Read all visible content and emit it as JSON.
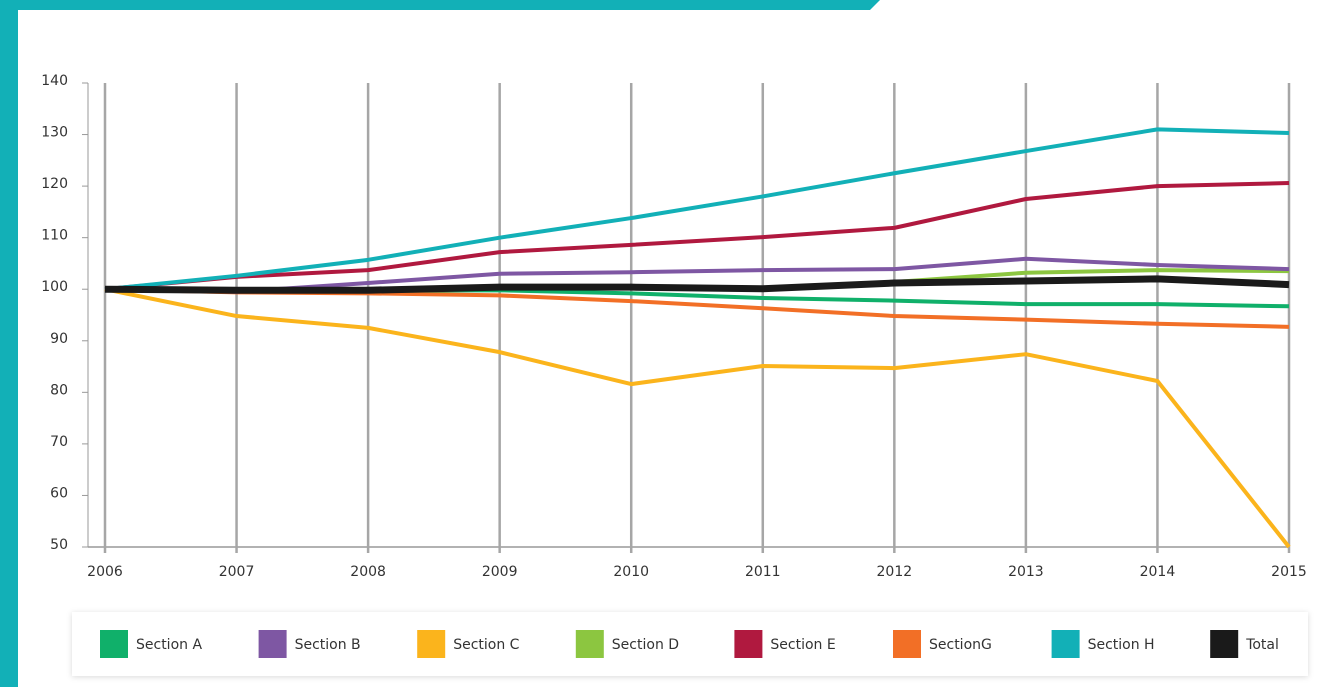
{
  "chart_data": {
    "type": "line",
    "categories": [
      "2006",
      "2007",
      "2008",
      "2009",
      "2010",
      "2011",
      "2012",
      "2013",
      "2014",
      "2015"
    ],
    "ylim": [
      50,
      140
    ],
    "yticks": [
      50,
      60,
      70,
      80,
      90,
      100,
      110,
      120,
      130,
      140
    ],
    "grid": true,
    "series": [
      {
        "name": "Section A",
        "color": "#10b06a",
        "values": [
          100,
          99.8,
          99.7,
          99.8,
          99.2,
          98.3,
          97.8,
          97.1,
          97.1,
          96.7
        ]
      },
      {
        "name": "Section B",
        "color": "#7e57a3",
        "values": [
          100,
          99.5,
          101.2,
          103,
          103.3,
          103.7,
          103.9,
          105.9,
          104.7,
          103.9
        ]
      },
      {
        "name": "Section C",
        "color": "#fbb41c",
        "values": [
          100,
          94.8,
          92.5,
          87.8,
          81.6,
          85.1,
          84.7,
          87.4,
          82.2,
          50
        ]
      },
      {
        "name": "Section D",
        "color": "#8cc640",
        "values": [
          100,
          100,
          100,
          100.5,
          100.5,
          100.3,
          101.4,
          103.2,
          103.7,
          103.5
        ]
      },
      {
        "name": "Section E",
        "color": "#b0193f",
        "values": [
          100,
          102.4,
          103.7,
          107.2,
          108.6,
          110.1,
          111.9,
          117.5,
          120,
          120.6
        ]
      },
      {
        "name": "SectionG",
        "color": "#f26f26",
        "values": [
          100,
          99.4,
          99.2,
          98.8,
          97.7,
          96.3,
          94.8,
          94.1,
          93.3,
          92.7
        ]
      },
      {
        "name": "Section H",
        "color": "#12b0b7",
        "values": [
          100,
          102.6,
          105.7,
          110,
          113.8,
          118,
          122.5,
          126.8,
          131,
          130.3
        ]
      },
      {
        "name": "Total",
        "color": "#1a1a1a",
        "values": [
          100,
          99.8,
          99.8,
          100.4,
          100.4,
          100.1,
          101.2,
          101.6,
          102,
          100.9
        ]
      }
    ]
  }
}
